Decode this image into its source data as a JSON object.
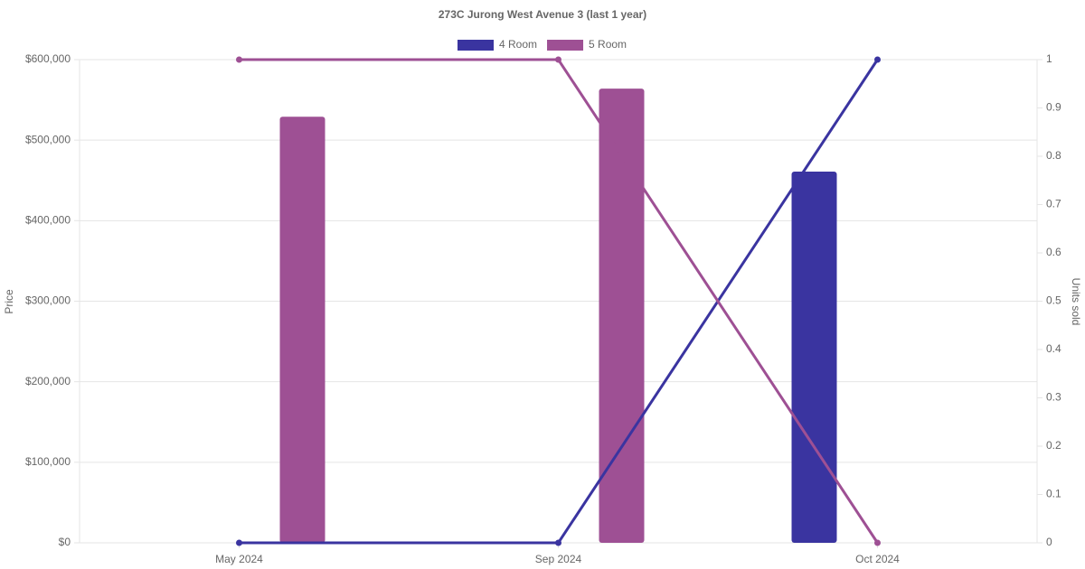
{
  "chart_data": {
    "type": "bar-line",
    "title": "273C Jurong West Avenue 3 (last 1 year)",
    "categories": [
      "May 2024",
      "Sep 2024",
      "Oct 2024"
    ],
    "y_label": "Price",
    "y2_label": "Units sold",
    "series": [
      {
        "name": "4 Room",
        "color": "#3a34a0",
        "values": [
          null,
          null,
          461000
        ],
        "units_sold": [
          0,
          0,
          1
        ]
      },
      {
        "name": "5 Room",
        "color": "#9e5094",
        "values": [
          529000,
          564000,
          null
        ],
        "units_sold": [
          1,
          1,
          0
        ]
      }
    ],
    "ylim": [
      0,
      600000
    ],
    "yticks": [
      {
        "value": 0,
        "label": "$0"
      },
      {
        "value": 100000,
        "label": "$100,000"
      },
      {
        "value": 200000,
        "label": "$200,000"
      },
      {
        "value": 300000,
        "label": "$300,000"
      },
      {
        "value": 400000,
        "label": "$400,000"
      },
      {
        "value": 500000,
        "label": "$500,000"
      },
      {
        "value": 600000,
        "label": "$600,000"
      }
    ],
    "y2lim": [
      0,
      1
    ],
    "y2ticks": [
      0,
      0.1,
      0.2,
      0.3,
      0.4,
      0.5,
      0.6,
      0.7,
      0.8,
      0.9,
      1
    ],
    "grid": true,
    "legend": "top"
  }
}
